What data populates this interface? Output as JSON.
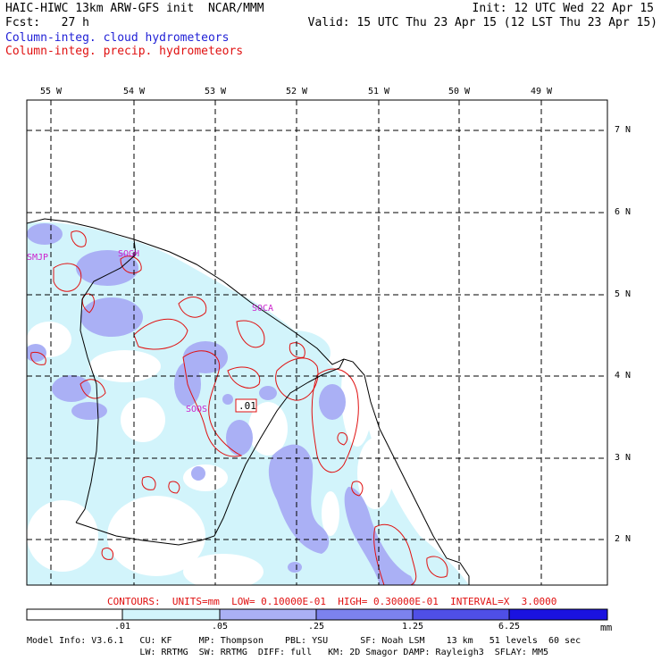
{
  "header": {
    "model_line": "HAIC-HIWC 13km ARW-GFS init  NCAR/MMM",
    "init_line": "Init: 12 UTC Wed 22 Apr 15",
    "fcst_line": "Fcst:   27 h",
    "valid_line": "Valid: 15 UTC Thu 23 Apr 15 (12 LST Thu 23 Apr 15)",
    "field_cloud": "Column-integ. cloud hydrometeors",
    "field_precip": "Column-integ. precip. hydrometeors"
  },
  "map": {
    "lon_labels": [
      "55 W",
      "54 W",
      "53 W",
      "52 W",
      "51 W",
      "50 W",
      "49 W"
    ],
    "lat_labels": [
      "7 N",
      "6 N",
      "5 N",
      "4 N",
      "3 N",
      "2 N"
    ],
    "stations": [
      "SMJP",
      "SOGH",
      "SOCA",
      "SOOS"
    ],
    "contour_label": ".01",
    "colors": {
      "shade_1": "#d2f4fb",
      "shade_2": "#aab0f5",
      "shade_3": "#7c82ee",
      "shade_4": "#4f4fe6",
      "shade_5": "#1a12e0",
      "contour": "#e01010",
      "boundary": "#000000"
    }
  },
  "contours_line": "CONTOURS:  UNITS=mm  LOW= 0.10000E-01  HIGH= 0.30000E-01  INTERVAL=X  3.0000",
  "colorbar": {
    "ticks": [
      ".01",
      ".05",
      ".25",
      "1.25",
      "6.25"
    ],
    "units": "mm"
  },
  "footer": {
    "line1": "Model Info: V3.6.1   CU: KF     MP: Thompson    PBL: YSU      SF: Noah LSM    13 km   51 levels  60 sec",
    "line2": "                     LW: RRTMG  SW: RRTMG  DIFF: full   KM: 2D Smagor DAMP: Rayleigh3  SFLAY: MM5"
  }
}
